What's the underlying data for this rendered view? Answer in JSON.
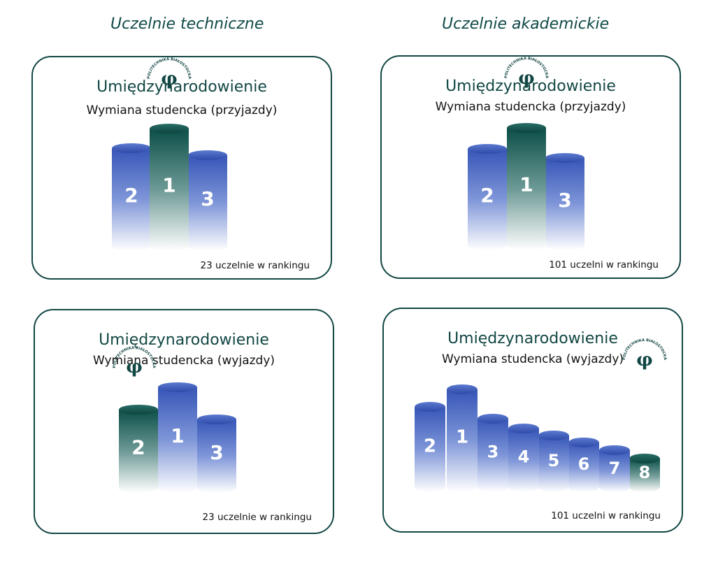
{
  "columns": {
    "left": "Uczelnie techniczne",
    "right": "Uczelnie akademickie"
  },
  "cards": {
    "tl": {
      "title": "Umiędzynarodowienie",
      "subtitle": "Wymiana studencka (przyjazdy)",
      "note": "23 uczelnie w rankingu"
    },
    "tr": {
      "title": "Umiędzynarodowienie",
      "subtitle": "Wymiana studencka (przyjazdy)",
      "note": "101 uczelni w rankingu"
    },
    "bl": {
      "title": "Umiędzynarodowienie",
      "subtitle": "Wymiana studencka (wyjazdy)",
      "note": "23 uczelnie w rankingu"
    },
    "br": {
      "title": "Umiędzynarodowienie",
      "subtitle": "Wymiana studencka (wyjazdy)",
      "note": "101 uczelni w rankingu"
    }
  },
  "logo": {
    "glyph": "φ",
    "text": "POLITECHNIKA BIAŁOSTOCKA"
  },
  "podiums": {
    "tl": {
      "ranks": [
        "2",
        "1",
        "3"
      ],
      "highlight": "1"
    },
    "tr": {
      "ranks": [
        "2",
        "1",
        "3"
      ],
      "highlight": "1"
    },
    "bl": {
      "ranks": [
        "2",
        "1",
        "3"
      ],
      "highlight": "2"
    },
    "br": {
      "ranks": [
        "2",
        "1",
        "3",
        "4",
        "5",
        "6",
        "7",
        "8"
      ],
      "highlight": "8"
    }
  },
  "colors": {
    "blue": "#3a5ec4",
    "green": "#0f5a52",
    "brand": "#124744"
  }
}
